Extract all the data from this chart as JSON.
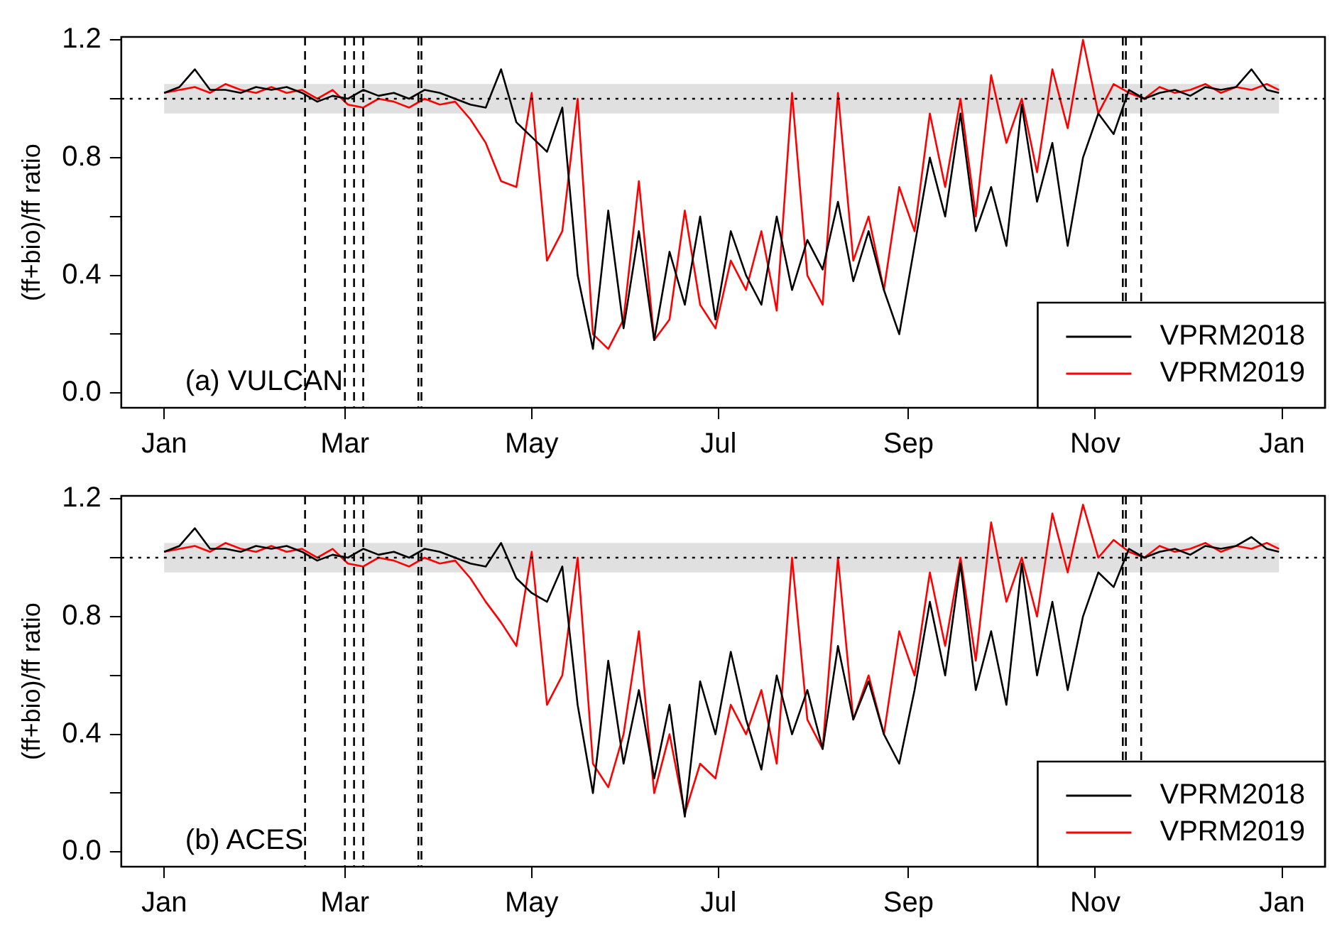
{
  "chart_data": [
    {
      "type": "line",
      "ylabel": "(ff+bio)/ff ratio",
      "annotations": [
        "(a) VULCAN"
      ],
      "legend": "bottom right",
      "marker": "none",
      "line_style": "solid",
      "x": [
        "2019-01-01",
        "2019-01-06",
        "2019-01-11",
        "2019-01-16",
        "2019-01-21",
        "2019-01-26",
        "2019-01-31",
        "2019-02-05",
        "2019-02-10",
        "2019-02-15",
        "2019-02-20",
        "2019-02-25",
        "2019-03-02",
        "2019-03-07",
        "2019-03-12",
        "2019-03-17",
        "2019-03-22",
        "2019-03-27",
        "2019-04-01",
        "2019-04-06",
        "2019-04-11",
        "2019-04-16",
        "2019-04-21",
        "2019-04-26",
        "2019-05-01",
        "2019-05-06",
        "2019-05-11",
        "2019-05-16",
        "2019-05-21",
        "2019-05-26",
        "2019-05-31",
        "2019-06-05",
        "2019-06-10",
        "2019-06-15",
        "2019-06-20",
        "2019-06-25",
        "2019-06-30",
        "2019-07-05",
        "2019-07-10",
        "2019-07-15",
        "2019-07-20",
        "2019-07-25",
        "2019-07-30",
        "2019-08-04",
        "2019-08-09",
        "2019-08-14",
        "2019-08-19",
        "2019-08-24",
        "2019-08-29",
        "2019-09-03",
        "2019-09-08",
        "2019-09-13",
        "2019-09-18",
        "2019-09-23",
        "2019-09-28",
        "2019-10-03",
        "2019-10-08",
        "2019-10-13",
        "2019-10-18",
        "2019-10-23",
        "2019-10-28",
        "2019-11-02",
        "2019-11-07",
        "2019-11-12",
        "2019-11-17",
        "2019-11-22",
        "2019-11-27",
        "2019-12-02",
        "2019-12-07",
        "2019-12-12",
        "2019-12-17",
        "2019-12-22",
        "2019-12-27",
        "2019-12-31"
      ],
      "xlim": [
        "2018-12-18",
        "2020-01-15"
      ],
      "xticks": [
        {
          "value": "2019-01-01",
          "label": "Jan"
        },
        {
          "value": "2019-03-01",
          "label": "Mar"
        },
        {
          "value": "2019-05-01",
          "label": "May"
        },
        {
          "value": "2019-07-01",
          "label": "Jul"
        },
        {
          "value": "2019-09-01",
          "label": "Sep"
        },
        {
          "value": "2019-11-01",
          "label": "Nov"
        },
        {
          "value": "2020-01-01",
          "label": "Jan"
        }
      ],
      "ylim": [
        -0.05,
        1.21
      ],
      "yticks": [
        {
          "value": 0,
          "label": "0.0"
        },
        {
          "value": 0.2,
          "label": null
        },
        {
          "value": 0.4,
          "label": "0.4"
        },
        {
          "value": 0.6,
          "label": null
        },
        {
          "value": 0.8,
          "label": "0.8"
        },
        {
          "value": 1,
          "label": null
        },
        {
          "value": 1.2,
          "label": "1.2"
        }
      ],
      "series": [
        {
          "name": "VPRM2018",
          "color": "#000000",
          "values": [
            1.02,
            1.04,
            1.1,
            1.03,
            1.03,
            1.02,
            1.04,
            1.03,
            1.04,
            1.02,
            0.99,
            1.01,
            1.0,
            1.03,
            1.01,
            1.02,
            1.0,
            1.03,
            1.02,
            1.0,
            0.98,
            0.97,
            1.1,
            0.92,
            0.87,
            0.82,
            0.97,
            0.4,
            0.15,
            0.62,
            0.22,
            0.55,
            0.18,
            0.48,
            0.3,
            0.6,
            0.25,
            0.55,
            0.4,
            0.3,
            0.6,
            0.35,
            0.52,
            0.42,
            0.65,
            0.38,
            0.55,
            0.35,
            0.2,
            0.5,
            0.8,
            0.6,
            0.95,
            0.55,
            0.7,
            0.5,
            0.98,
            0.65,
            0.85,
            0.5,
            0.8,
            0.95,
            0.88,
            1.03,
            1.0,
            1.02,
            1.03,
            1.01,
            1.04,
            1.03,
            1.04,
            1.1,
            1.03,
            1.02
          ]
        },
        {
          "name": "VPRM2019",
          "color": "#ff0000",
          "values": [
            1.02,
            1.03,
            1.04,
            1.02,
            1.05,
            1.03,
            1.02,
            1.04,
            1.02,
            1.03,
            1.0,
            1.03,
            0.98,
            0.97,
            1.0,
            0.99,
            0.97,
            1.0,
            0.98,
            0.99,
            0.93,
            0.85,
            0.72,
            0.7,
            1.02,
            0.45,
            0.55,
            1.0,
            0.2,
            0.15,
            0.25,
            0.72,
            0.18,
            0.25,
            0.62,
            0.3,
            0.22,
            0.45,
            0.35,
            0.55,
            0.28,
            1.02,
            0.4,
            0.3,
            1.02,
            0.45,
            0.6,
            0.35,
            0.7,
            0.55,
            0.95,
            0.7,
            1.0,
            0.6,
            1.08,
            0.85,
            1.0,
            0.75,
            1.1,
            0.9,
            1.2,
            0.95,
            1.05,
            1.02,
            1.0,
            1.04,
            1.02,
            1.03,
            1.05,
            1.02,
            1.04,
            1.03,
            1.05,
            1.03
          ]
        }
      ],
      "ref_lines": [
        {
          "axis": "y",
          "value": 1,
          "color": "#000000",
          "line_style": "dotted"
        },
        {
          "axis": "x",
          "value": "2019-02-16",
          "color": "#000000",
          "line_style": "dashed"
        },
        {
          "axis": "x",
          "value": "2019-03-01",
          "color": "#000000",
          "line_style": "dashed"
        },
        {
          "axis": "x",
          "value": "2019-03-04",
          "color": "#000000",
          "line_style": "dashed"
        },
        {
          "axis": "x",
          "value": "2019-03-07",
          "color": "#000000",
          "line_style": "dashed"
        },
        {
          "axis": "x",
          "value": "2019-03-25",
          "color": "#000000",
          "line_style": "dashed"
        },
        {
          "axis": "x",
          "value": "2019-03-26",
          "color": "#000000",
          "line_style": "dashed"
        },
        {
          "axis": "x",
          "value": "2019-11-10",
          "color": "#000000",
          "line_style": "dashed"
        },
        {
          "axis": "x",
          "value": "2019-11-11",
          "color": "#000000",
          "line_style": "dashed"
        },
        {
          "axis": "x",
          "value": "2019-11-16",
          "color": "#000000",
          "line_style": "dashed"
        }
      ],
      "bands": [
        {
          "axis": "y",
          "from": 0.95,
          "to": 1.05,
          "color": "#e0e0e0"
        }
      ]
    },
    {
      "type": "line",
      "ylabel": "(ff+bio)/ff ratio",
      "annotations": [
        "(b) ACES"
      ],
      "legend": "bottom right",
      "marker": "none",
      "line_style": "solid",
      "x": [
        "2019-01-01",
        "2019-01-06",
        "2019-01-11",
        "2019-01-16",
        "2019-01-21",
        "2019-01-26",
        "2019-01-31",
        "2019-02-05",
        "2019-02-10",
        "2019-02-15",
        "2019-02-20",
        "2019-02-25",
        "2019-03-02",
        "2019-03-07",
        "2019-03-12",
        "2019-03-17",
        "2019-03-22",
        "2019-03-27",
        "2019-04-01",
        "2019-04-06",
        "2019-04-11",
        "2019-04-16",
        "2019-04-21",
        "2019-04-26",
        "2019-05-01",
        "2019-05-06",
        "2019-05-11",
        "2019-05-16",
        "2019-05-21",
        "2019-05-26",
        "2019-05-31",
        "2019-06-05",
        "2019-06-10",
        "2019-06-15",
        "2019-06-20",
        "2019-06-25",
        "2019-06-30",
        "2019-07-05",
        "2019-07-10",
        "2019-07-15",
        "2019-07-20",
        "2019-07-25",
        "2019-07-30",
        "2019-08-04",
        "2019-08-09",
        "2019-08-14",
        "2019-08-19",
        "2019-08-24",
        "2019-08-29",
        "2019-09-03",
        "2019-09-08",
        "2019-09-13",
        "2019-09-18",
        "2019-09-23",
        "2019-09-28",
        "2019-10-03",
        "2019-10-08",
        "2019-10-13",
        "2019-10-18",
        "2019-10-23",
        "2019-10-28",
        "2019-11-02",
        "2019-11-07",
        "2019-11-12",
        "2019-11-17",
        "2019-11-22",
        "2019-11-27",
        "2019-12-02",
        "2019-12-07",
        "2019-12-12",
        "2019-12-17",
        "2019-12-22",
        "2019-12-27",
        "2019-12-31"
      ],
      "xlim": [
        "2018-12-18",
        "2020-01-15"
      ],
      "xticks": [
        {
          "value": "2019-01-01",
          "label": "Jan"
        },
        {
          "value": "2019-03-01",
          "label": "Mar"
        },
        {
          "value": "2019-05-01",
          "label": "May"
        },
        {
          "value": "2019-07-01",
          "label": "Jul"
        },
        {
          "value": "2019-09-01",
          "label": "Sep"
        },
        {
          "value": "2019-11-01",
          "label": "Nov"
        },
        {
          "value": "2020-01-01",
          "label": "Jan"
        }
      ],
      "ylim": [
        -0.05,
        1.21
      ],
      "yticks": [
        {
          "value": 0,
          "label": "0.0"
        },
        {
          "value": 0.2,
          "label": null
        },
        {
          "value": 0.4,
          "label": "0.4"
        },
        {
          "value": 0.6,
          "label": null
        },
        {
          "value": 0.8,
          "label": "0.8"
        },
        {
          "value": 1,
          "label": null
        },
        {
          "value": 1.2,
          "label": "1.2"
        }
      ],
      "series": [
        {
          "name": "VPRM2018",
          "color": "#000000",
          "values": [
            1.02,
            1.04,
            1.1,
            1.03,
            1.03,
            1.02,
            1.04,
            1.03,
            1.04,
            1.02,
            0.99,
            1.01,
            1.0,
            1.03,
            1.01,
            1.02,
            1.0,
            1.03,
            1.02,
            1.0,
            0.98,
            0.97,
            1.05,
            0.93,
            0.88,
            0.85,
            0.97,
            0.5,
            0.2,
            0.65,
            0.3,
            0.55,
            0.25,
            0.5,
            0.12,
            0.58,
            0.4,
            0.68,
            0.45,
            0.28,
            0.6,
            0.4,
            0.55,
            0.35,
            0.7,
            0.45,
            0.58,
            0.4,
            0.3,
            0.55,
            0.85,
            0.6,
            0.98,
            0.55,
            0.75,
            0.5,
            0.98,
            0.6,
            0.85,
            0.55,
            0.8,
            0.95,
            0.9,
            1.03,
            1.0,
            1.02,
            1.03,
            1.01,
            1.04,
            1.03,
            1.04,
            1.07,
            1.03,
            1.02
          ]
        },
        {
          "name": "VPRM2019",
          "color": "#ff0000",
          "values": [
            1.02,
            1.03,
            1.04,
            1.02,
            1.05,
            1.03,
            1.02,
            1.04,
            1.02,
            1.03,
            1.0,
            1.03,
            0.98,
            0.97,
            1.0,
            0.99,
            0.97,
            1.0,
            0.98,
            0.99,
            0.93,
            0.85,
            0.78,
            0.7,
            1.02,
            0.5,
            0.6,
            1.0,
            0.3,
            0.22,
            0.4,
            0.75,
            0.2,
            0.4,
            0.13,
            0.3,
            0.25,
            0.5,
            0.4,
            0.55,
            0.3,
            1.0,
            0.45,
            0.35,
            1.0,
            0.45,
            0.6,
            0.4,
            0.75,
            0.6,
            0.95,
            0.7,
            1.0,
            0.65,
            1.12,
            0.85,
            1.0,
            0.8,
            1.15,
            0.95,
            1.18,
            1.0,
            1.06,
            1.02,
            1.0,
            1.04,
            1.02,
            1.03,
            1.05,
            1.02,
            1.04,
            1.03,
            1.05,
            1.03
          ]
        }
      ],
      "ref_lines": [
        {
          "axis": "y",
          "value": 1,
          "color": "#000000",
          "line_style": "dotted"
        },
        {
          "axis": "x",
          "value": "2019-02-16",
          "color": "#000000",
          "line_style": "dashed"
        },
        {
          "axis": "x",
          "value": "2019-03-01",
          "color": "#000000",
          "line_style": "dashed"
        },
        {
          "axis": "x",
          "value": "2019-03-04",
          "color": "#000000",
          "line_style": "dashed"
        },
        {
          "axis": "x",
          "value": "2019-03-07",
          "color": "#000000",
          "line_style": "dashed"
        },
        {
          "axis": "x",
          "value": "2019-03-25",
          "color": "#000000",
          "line_style": "dashed"
        },
        {
          "axis": "x",
          "value": "2019-03-26",
          "color": "#000000",
          "line_style": "dashed"
        },
        {
          "axis": "x",
          "value": "2019-11-10",
          "color": "#000000",
          "line_style": "dashed"
        },
        {
          "axis": "x",
          "value": "2019-11-11",
          "color": "#000000",
          "line_style": "dashed"
        },
        {
          "axis": "x",
          "value": "2019-11-16",
          "color": "#000000",
          "line_style": "dashed"
        }
      ],
      "bands": [
        {
          "axis": "y",
          "from": 0.95,
          "to": 1.05,
          "color": "#e0e0e0"
        }
      ]
    }
  ]
}
